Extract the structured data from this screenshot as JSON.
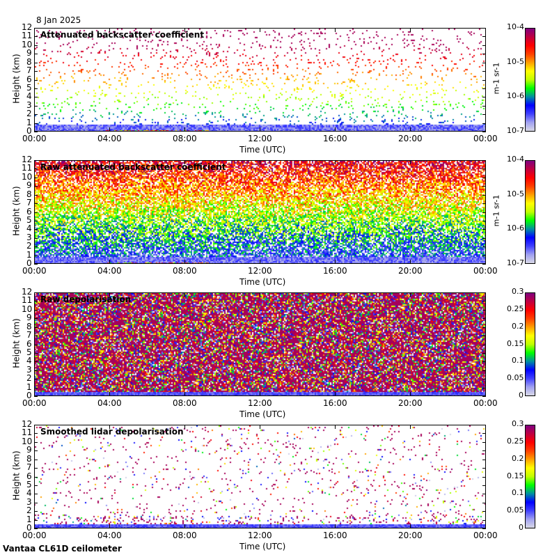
{
  "date": "8 Jan 2025",
  "footer": "Vantaa CL61D ceilometer",
  "chart_data": [
    {
      "type": "heatmap",
      "title": "Attenuated backscatter coefficient",
      "xlabel": "Time (UTC)",
      "ylabel": "Height (km)",
      "xticks": [
        "00:00",
        "04:00",
        "08:00",
        "12:00",
        "16:00",
        "20:00",
        "00:00"
      ],
      "yticks": [
        "0",
        "1",
        "2",
        "3",
        "4",
        "5",
        "6",
        "7",
        "8",
        "9",
        "10",
        "11",
        "12"
      ],
      "ylim": [
        0,
        12
      ],
      "scale": "log",
      "colorbar_label": "m-1 sr-1",
      "colorbar_ticks": [
        "10-7",
        "10-6",
        "10-5",
        "10-4"
      ],
      "density": 0.06
    },
    {
      "type": "heatmap",
      "title": "Raw attenuated backscatter coefficient",
      "xlabel": "Time (UTC)",
      "ylabel": "Height (km)",
      "xticks": [
        "00:00",
        "04:00",
        "08:00",
        "12:00",
        "16:00",
        "20:00",
        "00:00"
      ],
      "yticks": [
        "0",
        "1",
        "2",
        "3",
        "4",
        "5",
        "6",
        "7",
        "8",
        "9",
        "10",
        "11",
        "12"
      ],
      "ylim": [
        0,
        12
      ],
      "scale": "log",
      "colorbar_label": "m-1 sr-1",
      "colorbar_ticks": [
        "10-7",
        "10-6",
        "10-5",
        "10-4"
      ],
      "density": 0.85
    },
    {
      "type": "heatmap",
      "title": "Raw depolarisation",
      "xlabel": "Time (UTC)",
      "ylabel": "Height (km)",
      "xticks": [
        "00:00",
        "04:00",
        "08:00",
        "12:00",
        "16:00",
        "20:00",
        "00:00"
      ],
      "yticks": [
        "0",
        "1",
        "2",
        "3",
        "4",
        "5",
        "6",
        "7",
        "8",
        "9",
        "10",
        "11",
        "12"
      ],
      "ylim": [
        0,
        12
      ],
      "scale": "linear",
      "colorbar_label": "",
      "colorbar_ticks": [
        "0",
        "0.05",
        "0.1",
        "0.15",
        "0.2",
        "0.25",
        "0.3"
      ],
      "density": 0.95
    },
    {
      "type": "heatmap",
      "title": "Smoothed lidar depolarisation",
      "xlabel": "Time (UTC)",
      "ylabel": "Height (km)",
      "xticks": [
        "00:00",
        "04:00",
        "08:00",
        "12:00",
        "16:00",
        "20:00",
        "00:00"
      ],
      "yticks": [
        "0",
        "1",
        "2",
        "3",
        "4",
        "5",
        "6",
        "7",
        "8",
        "9",
        "10",
        "11",
        "12"
      ],
      "ylim": [
        0,
        12
      ],
      "scale": "linear",
      "colorbar_label": "",
      "colorbar_ticks": [
        "0",
        "0.05",
        "0.1",
        "0.15",
        "0.2",
        "0.25",
        "0.3"
      ],
      "density": 0.04
    }
  ],
  "colors": [
    "#d8d8e6",
    "#a0a0f0",
    "#4040ff",
    "#0000ff",
    "#0090a0",
    "#00ff00",
    "#c0ff00",
    "#ffff00",
    "#ffa000",
    "#ff4000",
    "#ff0000",
    "#c00040",
    "#800080"
  ]
}
